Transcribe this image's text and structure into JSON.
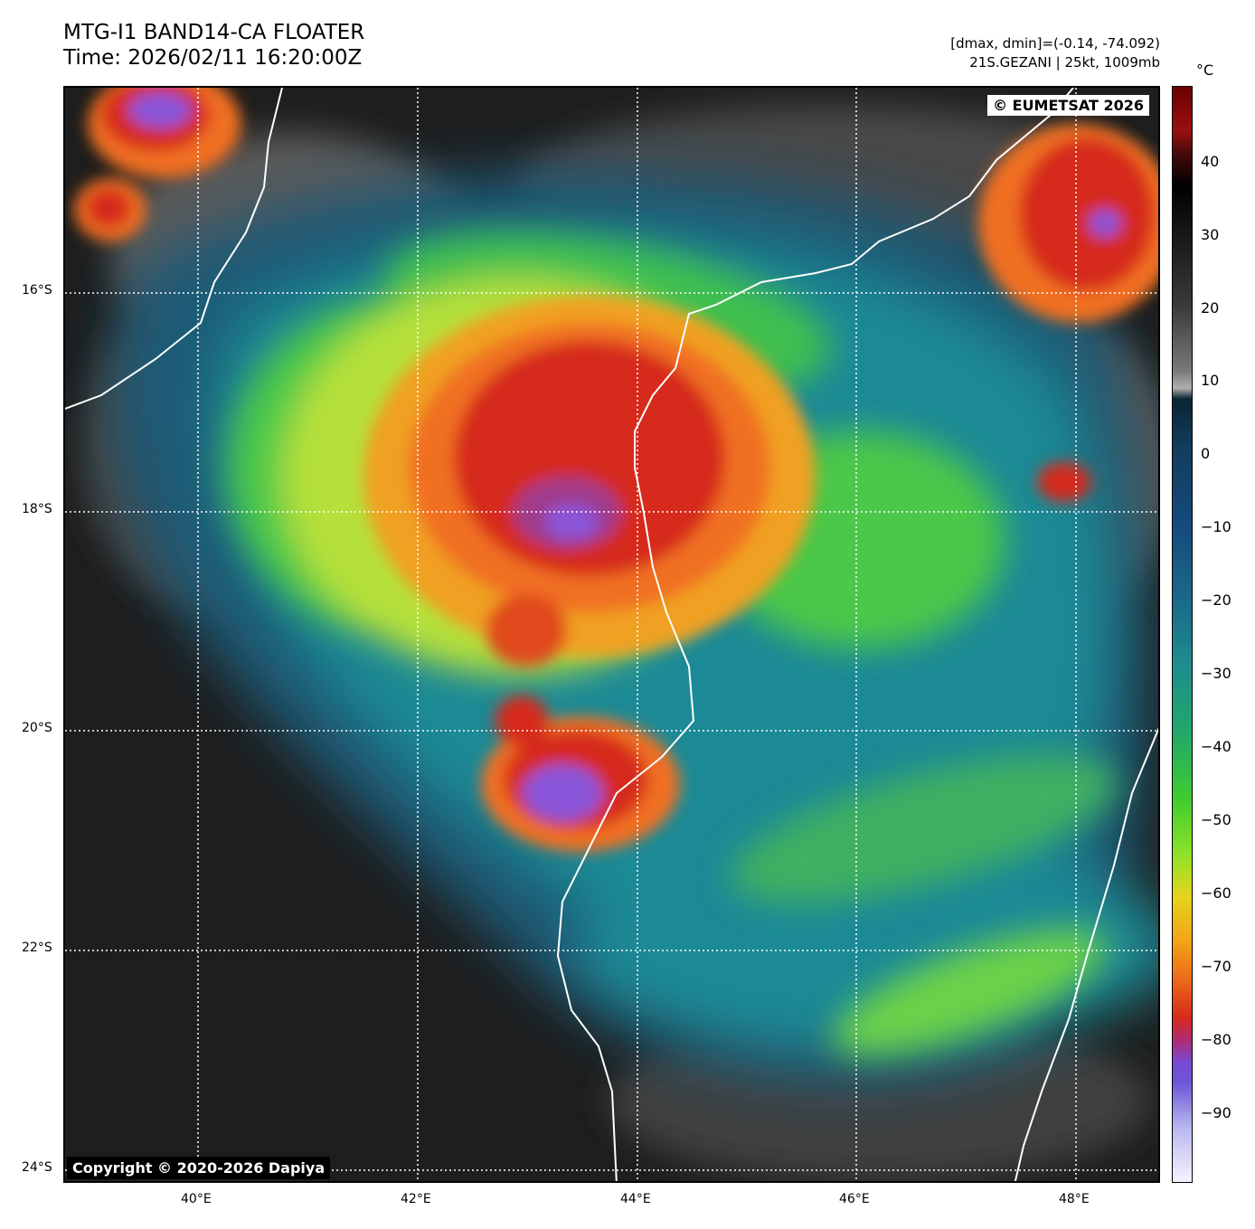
{
  "header": {
    "title_line1": "MTG-I1 BAND14-CA FLOATER",
    "title_line2": "Time: 2026/02/11 16:20:00Z",
    "info_line1": "[dmax, dmin]=(-0.14, -74.092)",
    "info_line2": "21S.GEZANI | 25kt, 1009mb"
  },
  "map": {
    "copyright_top_right": "© EUMETSAT 2026",
    "copyright_bottom_left": "Copyright © 2020-2026 Dapiya",
    "lon_labels": [
      "40°E",
      "42°E",
      "44°E",
      "46°E",
      "48°E"
    ],
    "lat_labels": [
      "16°S",
      "18°S",
      "20°S",
      "22°S",
      "24°S"
    ]
  },
  "colorbar": {
    "unit": "°C",
    "labels": [
      "40",
      "30",
      "20",
      "10",
      "0",
      "−10",
      "−20",
      "−30",
      "−40",
      "−50",
      "−60",
      "−70",
      "−80",
      "−90"
    ]
  },
  "colors": {
    "warm_gray": "#1e1e1e",
    "cold_red": "#d62a1a",
    "overshoot_purple": "#8a55d8",
    "mid_green": "#5ad23a",
    "teal": "#1f7f8e",
    "coastline": "#ffffff"
  }
}
